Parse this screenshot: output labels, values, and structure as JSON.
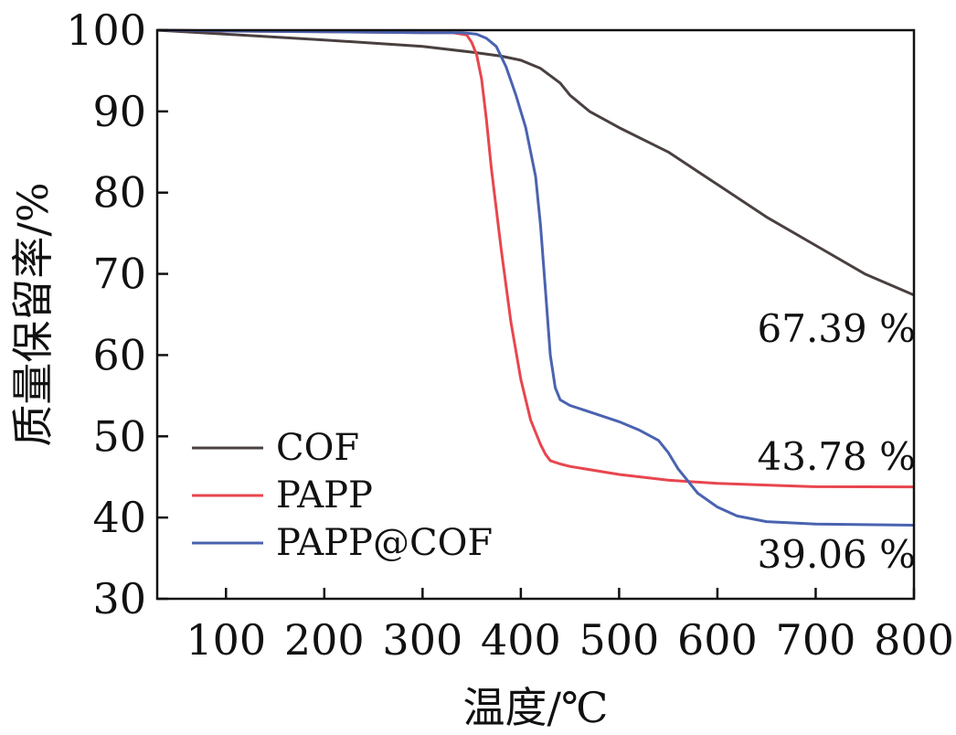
{
  "chart_data": {
    "type": "line",
    "xlabel": "温度/℃",
    "ylabel": "质量保留率/%",
    "xlim": [
      30,
      800
    ],
    "ylim": [
      30,
      100
    ],
    "xticks": [
      100,
      200,
      300,
      400,
      500,
      600,
      700,
      800
    ],
    "yticks": [
      30,
      40,
      50,
      60,
      70,
      80,
      90,
      100
    ],
    "grid": false,
    "legend_position": "lower-left",
    "series": [
      {
        "name": "COF",
        "color": "#4a4040",
        "x": [
          30,
          100,
          200,
          300,
          350,
          380,
          400,
          420,
          440,
          450,
          470,
          500,
          550,
          600,
          650,
          700,
          750,
          800
        ],
        "y": [
          100,
          99.5,
          98.8,
          98.0,
          97.3,
          96.8,
          96.3,
          95.3,
          93.5,
          92.0,
          90.0,
          88.0,
          85.0,
          81.0,
          77.0,
          73.5,
          70.0,
          67.39
        ]
      },
      {
        "name": "PAPP",
        "color": "#e8464e",
        "x": [
          30,
          100,
          200,
          300,
          330,
          345,
          350,
          355,
          360,
          365,
          370,
          380,
          390,
          400,
          410,
          420,
          425,
          430,
          440,
          450,
          500,
          550,
          600,
          650,
          700,
          800
        ],
        "y": [
          100,
          99.9,
          99.8,
          99.7,
          99.7,
          99.4,
          98.5,
          97.0,
          94.0,
          89.0,
          83.0,
          73.0,
          64.0,
          57.0,
          52.0,
          49.0,
          47.8,
          47.0,
          46.6,
          46.3,
          45.3,
          44.6,
          44.2,
          44.0,
          43.8,
          43.78
        ]
      },
      {
        "name": "PAPP@COF",
        "color": "#4a63b0",
        "x": [
          30,
          100,
          200,
          300,
          340,
          355,
          365,
          375,
          385,
          395,
          405,
          415,
          420,
          425,
          430,
          435,
          440,
          450,
          470,
          500,
          520,
          540,
          550,
          560,
          570,
          580,
          600,
          620,
          650,
          700,
          800
        ],
        "y": [
          100,
          99.9,
          99.8,
          99.7,
          99.7,
          99.5,
          99.0,
          98.0,
          95.5,
          92.0,
          88.0,
          82.0,
          76.0,
          68.0,
          60.0,
          56.0,
          54.5,
          53.8,
          53.0,
          51.8,
          50.8,
          49.5,
          48.0,
          46.0,
          44.5,
          43.0,
          41.3,
          40.2,
          39.5,
          39.2,
          39.06
        ]
      }
    ],
    "annotations": [
      "67.39 %",
      "43.78 %",
      "39.06 %"
    ]
  }
}
